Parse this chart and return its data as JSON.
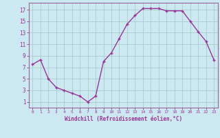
{
  "x": [
    0,
    1,
    2,
    3,
    4,
    5,
    6,
    7,
    8,
    9,
    10,
    11,
    12,
    13,
    14,
    15,
    16,
    17,
    18,
    19,
    20,
    21,
    22,
    23
  ],
  "y": [
    7.5,
    8.3,
    5.0,
    3.5,
    3.0,
    2.5,
    2.0,
    1.0,
    2.0,
    8.0,
    9.5,
    12.0,
    14.5,
    16.0,
    17.2,
    17.2,
    17.2,
    16.8,
    16.8,
    16.8,
    15.0,
    13.2,
    11.5,
    8.3
  ],
  "line_color": "#993399",
  "marker": "+",
  "bg_color": "#cce8f0",
  "grid_color": "#aacccc",
  "xlabel": "Windchill (Refroidissement éolien,°C)",
  "ylabel_ticks": [
    1,
    3,
    5,
    7,
    9,
    11,
    13,
    15,
    17
  ],
  "xticks": [
    0,
    1,
    2,
    3,
    4,
    5,
    6,
    7,
    8,
    9,
    10,
    11,
    12,
    13,
    14,
    15,
    16,
    17,
    18,
    19,
    20,
    21,
    22,
    23
  ],
  "xlim": [
    -0.5,
    23.5
  ],
  "ylim": [
    0.0,
    18.2
  ],
  "tick_color": "#993399",
  "label_color": "#993399",
  "spine_color": "#996699"
}
